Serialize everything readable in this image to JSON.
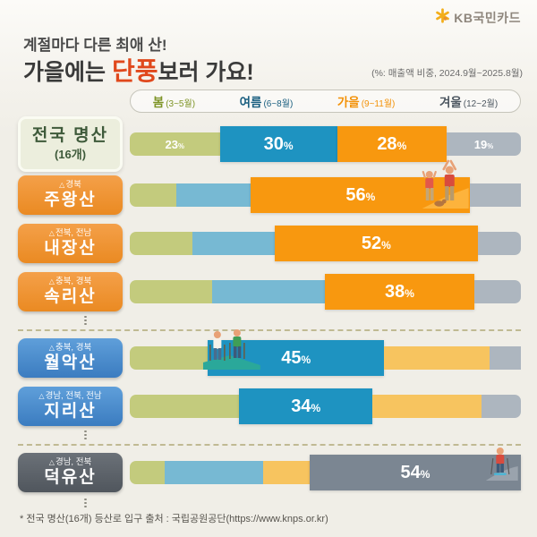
{
  "brand": {
    "logo_text": "KB국민카드",
    "star_color": "#f3ae19"
  },
  "header": {
    "subtitle": "계절마다 다른 최애 산!",
    "title_prefix": "가을에는 ",
    "title_highlight": "단풍",
    "title_suffix": "보러 가요!",
    "highlight_color": "#e0481c",
    "note": "(%: 매출액 비중, 2024.9월~2025.8월)"
  },
  "legend": {
    "items": [
      {
        "key": "spring",
        "label": "봄",
        "range": "(3~5월)",
        "color": "#7e9427"
      },
      {
        "key": "summer",
        "label": "여름",
        "range": "(6~8월)",
        "color": "#1a5f80"
      },
      {
        "key": "autumn",
        "label": "가을",
        "range": "(9~11월)",
        "color": "#f39209"
      },
      {
        "key": "winter",
        "label": "겨울",
        "range": "(12~2월)",
        "color": "#4c5660"
      }
    ]
  },
  "chart_data": {
    "type": "bar",
    "stacked": true,
    "orientation": "horizontal",
    "unit": "%",
    "xlim": [
      0,
      100
    ],
    "categories": [
      "봄",
      "여름",
      "가을",
      "겨울"
    ],
    "seasons": [
      {
        "key": "spring",
        "label": "봄",
        "months": "(3~5월)",
        "color_muted": "#c3cb7d",
        "color_emphasis": "#b5c45e"
      },
      {
        "key": "summer",
        "label": "여름",
        "months": "(6~8월)",
        "color_muted": "#77b9d3",
        "color_emphasis": "#1e93c1"
      },
      {
        "key": "autumn",
        "label": "가을",
        "months": "(9~11월)",
        "color_muted": "#f7c45f",
        "color_emphasis": "#f8980f"
      },
      {
        "key": "winter",
        "label": "겨울",
        "months": "(12~2월)",
        "color_muted": "#adb6bf",
        "color_emphasis": "#7b8692"
      }
    ],
    "rows": [
      {
        "key": "national",
        "name": "전국 명산",
        "sub": "(16개)",
        "region": "",
        "box_style": "cream",
        "values": [
          23,
          30,
          28,
          19
        ],
        "highlight": [
          1,
          2
        ],
        "labeled": [
          0,
          1,
          2,
          3
        ],
        "after": null,
        "illustration": null
      },
      {
        "key": "juwangsan",
        "name": "주왕산",
        "sub": "",
        "region": "경북",
        "box_style": "orange-box",
        "values": [
          12,
          19,
          56,
          13
        ],
        "highlight": [
          2
        ],
        "labeled": [
          2
        ],
        "after": null,
        "illustration": "celebrating-hikers"
      },
      {
        "key": "naejangsan",
        "name": "내장산",
        "sub": "",
        "region": "전북, 전남",
        "box_style": "orange-box",
        "values": [
          16,
          21,
          52,
          11
        ],
        "highlight": [
          2
        ],
        "labeled": [
          2
        ],
        "after": null,
        "illustration": null
      },
      {
        "key": "songnisan",
        "name": "속리산",
        "sub": "",
        "region": "충북, 경북",
        "box_style": "orange-box",
        "values": [
          21,
          29,
          38,
          12
        ],
        "highlight": [
          2
        ],
        "labeled": [
          2
        ],
        "after": "dots-dash",
        "illustration": null
      },
      {
        "key": "woraksan",
        "name": "월악산",
        "sub": "",
        "region": "충북, 경북",
        "box_style": "blue-box",
        "values": [
          20,
          45,
          27,
          8
        ],
        "highlight": [
          1
        ],
        "labeled": [
          1
        ],
        "after": null,
        "illustration": "hikers"
      },
      {
        "key": "jirisan",
        "name": "지리산",
        "sub": "",
        "region": "경남, 전북, 전남",
        "box_style": "blue-box",
        "values": [
          28,
          34,
          28,
          10
        ],
        "highlight": [
          1
        ],
        "labeled": [
          1
        ],
        "after": "dots-dash",
        "illustration": null
      },
      {
        "key": "deogyusan",
        "name": "덕유산",
        "sub": "",
        "region": "경남, 전북",
        "box_style": "gray-box",
        "values": [
          9,
          25,
          12,
          54
        ],
        "highlight": [
          3
        ],
        "labeled": [
          3
        ],
        "after": "dots",
        "illustration": "skier"
      }
    ]
  },
  "footer": {
    "source": "* 전국 명산(16개) 등산로 입구 출처 : 국립공원공단(https://www.knps.or.kr)"
  }
}
